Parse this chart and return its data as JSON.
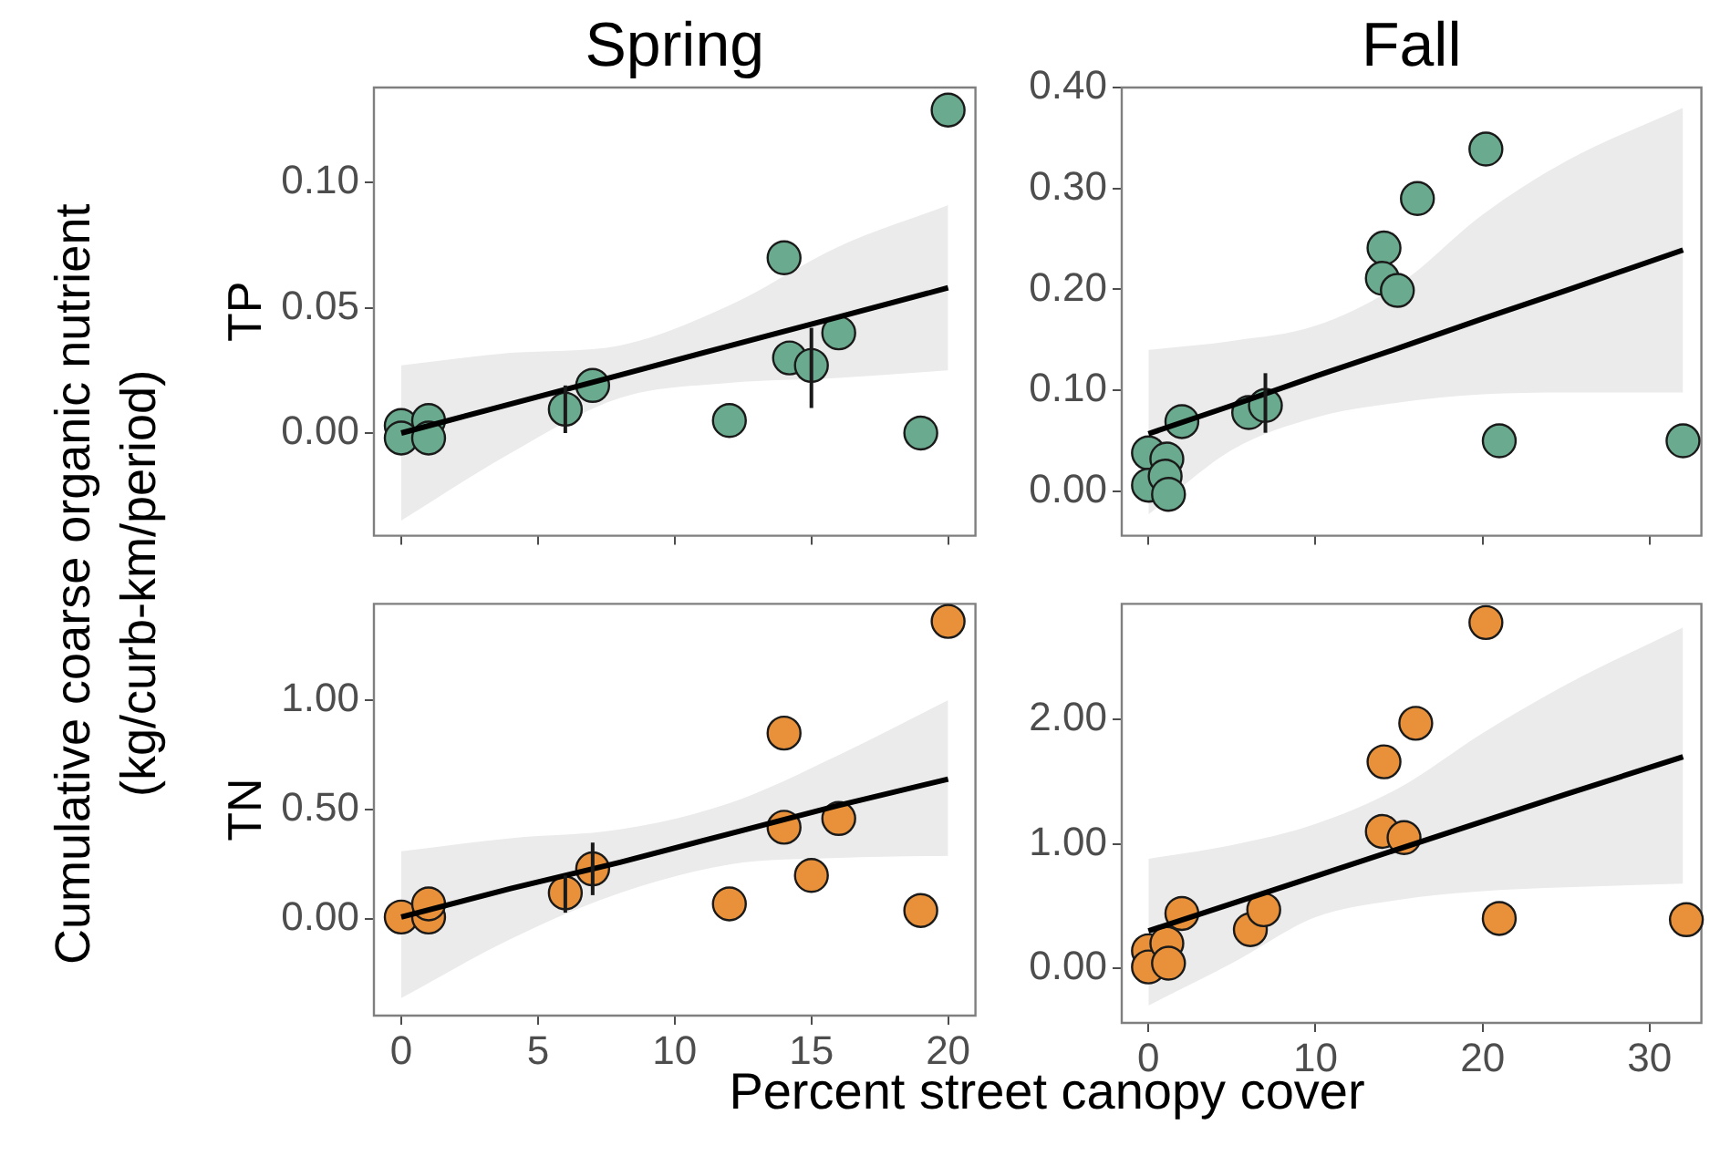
{
  "chart_data": [
    {
      "type": "scatter",
      "title": "Spring",
      "ylabel": "TP",
      "annotations": [
        "Cumulative coarse organic nutrient (kg/curb-km/period)"
      ],
      "xlim": [
        -1,
        21
      ],
      "ylim": [
        -0.041,
        0.138
      ],
      "xticks": [
        0,
        5,
        10,
        15,
        20
      ],
      "yticks": [
        {
          "value": 0,
          "label": "0.00"
        },
        {
          "value": 0.05,
          "label": "0.05"
        },
        {
          "value": 0.1,
          "label": "0.10"
        }
      ],
      "tick_labels": "y",
      "grid": false,
      "legend": false,
      "series": [
        {
          "marker": "circle",
          "color": "#6aaa8e",
          "x": [
            0,
            0,
            1,
            1,
            6,
            7,
            12,
            14,
            14.2,
            15,
            16,
            19,
            20
          ],
          "values": [
            0.003,
            -0.002,
            0.005,
            -0.002,
            0.0095,
            0.019,
            0.005,
            0.07,
            0.03,
            0.027,
            0.04,
            0,
            0.129
          ],
          "errors": [
            null,
            null,
            null,
            null,
            [
              0,
              0.019
            ],
            null,
            null,
            null,
            null,
            [
              0.01,
              0.042
            ],
            null,
            null,
            null
          ]
        },
        {
          "type": "line",
          "marker": "none",
          "color": "#000000",
          "line_style": "solid",
          "x": [
            0,
            4,
            8,
            12,
            16,
            20
          ],
          "values": [
            0,
            0.0116,
            0.0232,
            0.0348,
            0.0464,
            0.058
          ],
          "lower": [
            -0.035,
            -0.008,
            0.014,
            0.02,
            0.022,
            0.025
          ],
          "upper": [
            0.027,
            0.032,
            0.035,
            0.051,
            0.0745,
            0.091
          ]
        }
      ]
    },
    {
      "type": "scatter",
      "title": "Fall",
      "xlim": [
        -1.6,
        33.1
      ],
      "ylim": [
        -0.044,
        0.4
      ],
      "xticks": [
        0,
        10,
        20,
        30
      ],
      "yticks": [
        {
          "value": 0,
          "label": "0.00"
        },
        {
          "value": 0.1,
          "label": "0.10"
        },
        {
          "value": 0.2,
          "label": "0.20"
        },
        {
          "value": 0.3,
          "label": "0.30"
        },
        {
          "value": 0.4,
          "label": "0.40"
        }
      ],
      "tick_labels": "y",
      "grid": false,
      "legend": false,
      "series": [
        {
          "marker": "circle",
          "color": "#6aaa8e",
          "x": [
            0,
            0,
            1.1,
            1,
            1.2,
            2,
            6,
            7,
            14.1,
            14,
            14.9,
            16.1,
            20.2,
            21,
            32
          ],
          "values": [
            0.038,
            0.006,
            0.032,
            0.015,
            -0.003,
            0.069,
            0.078,
            0.085,
            0.241,
            0.211,
            0.199,
            0.29,
            0.339,
            0.05,
            0.05
          ],
          "errors": [
            null,
            null,
            null,
            null,
            null,
            null,
            null,
            [
              0.058,
              0.117
            ],
            null,
            null,
            null,
            null,
            null,
            null,
            null
          ]
        },
        {
          "type": "line",
          "marker": "none",
          "color": "#000000",
          "line_style": "solid",
          "x": [
            0,
            5,
            10,
            15,
            20,
            25,
            32
          ],
          "values": [
            0.057,
            0.085,
            0.114,
            0.142,
            0.171,
            0.199,
            0.239
          ],
          "lower": [
            -0.023,
            0.041,
            0.073,
            0.088,
            0.096,
            0.098,
            0.098
          ],
          "upper": [
            0.14,
            0.149,
            0.164,
            0.205,
            0.274,
            0.327,
            0.38
          ]
        }
      ]
    },
    {
      "type": "scatter",
      "ylabel": "TN",
      "annotations": [
        "Percent street canopy cover"
      ],
      "xlim": [
        -1,
        21
      ],
      "ylim": [
        -0.44,
        1.44
      ],
      "xticks": [
        0,
        5,
        10,
        15,
        20
      ],
      "yticks": [
        {
          "value": 0,
          "label": "0.00"
        },
        {
          "value": 0.5,
          "label": "0.50"
        },
        {
          "value": 1,
          "label": "1.00"
        }
      ],
      "grid": false,
      "legend": false,
      "series": [
        {
          "marker": "circle",
          "color": "#e8913a",
          "x": [
            0,
            1,
            1,
            6,
            7,
            12,
            14,
            14,
            15,
            16,
            19,
            20
          ],
          "values": [
            0.01,
            0.01,
            0.07,
            0.12,
            0.23,
            0.07,
            0.85,
            0.42,
            0.2,
            0.46,
            0.04,
            1.36
          ],
          "errors": [
            null,
            null,
            null,
            [
              0.03,
              0.2
            ],
            [
              0.11,
              0.35
            ],
            null,
            null,
            null,
            null,
            null,
            null,
            null
          ]
        },
        {
          "type": "line",
          "marker": "none",
          "color": "#000000",
          "line_style": "solid",
          "x": [
            0,
            4,
            8,
            12,
            16,
            20
          ],
          "values": [
            0.01,
            0.14,
            0.26,
            0.39,
            0.52,
            0.64
          ],
          "lower": [
            -0.36,
            -0.09,
            0.12,
            0.25,
            0.28,
            0.29
          ],
          "upper": [
            0.31,
            0.37,
            0.41,
            0.53,
            0.75,
            1
          ]
        }
      ]
    },
    {
      "type": "scatter",
      "xlim": [
        -1.6,
        33.1
      ],
      "ylim": [
        -0.44,
        2.93
      ],
      "xticks": [
        0,
        10,
        20,
        30
      ],
      "yticks": [
        {
          "value": 0,
          "label": "0.00"
        },
        {
          "value": 1,
          "label": "1.00"
        },
        {
          "value": 2,
          "label": "2.00"
        }
      ],
      "grid": false,
      "legend": false,
      "series": [
        {
          "marker": "circle",
          "color": "#e8913a",
          "x": [
            0,
            0,
            1.1,
            1.2,
            2,
            6.1,
            6.9,
            14.1,
            14,
            15.3,
            16,
            20.2,
            21,
            32.2
          ],
          "values": [
            0.14,
            0.01,
            0.2,
            0.04,
            0.44,
            0.31,
            0.47,
            1.66,
            1.1,
            1.05,
            1.97,
            2.78,
            0.4,
            0.39
          ]
        },
        {
          "type": "line",
          "marker": "none",
          "color": "#000000",
          "line_style": "solid",
          "x": [
            0,
            5,
            10,
            15,
            20,
            25,
            32
          ],
          "values": [
            0.3,
            0.52,
            0.74,
            0.96,
            1.18,
            1.4,
            1.7
          ],
          "lower": [
            -0.3,
            0.04,
            0.41,
            0.55,
            0.62,
            0.65,
            0.68
          ],
          "upper": [
            0.88,
            0.99,
            1.16,
            1.45,
            1.89,
            2.28,
            2.74
          ]
        }
      ]
    }
  ]
}
